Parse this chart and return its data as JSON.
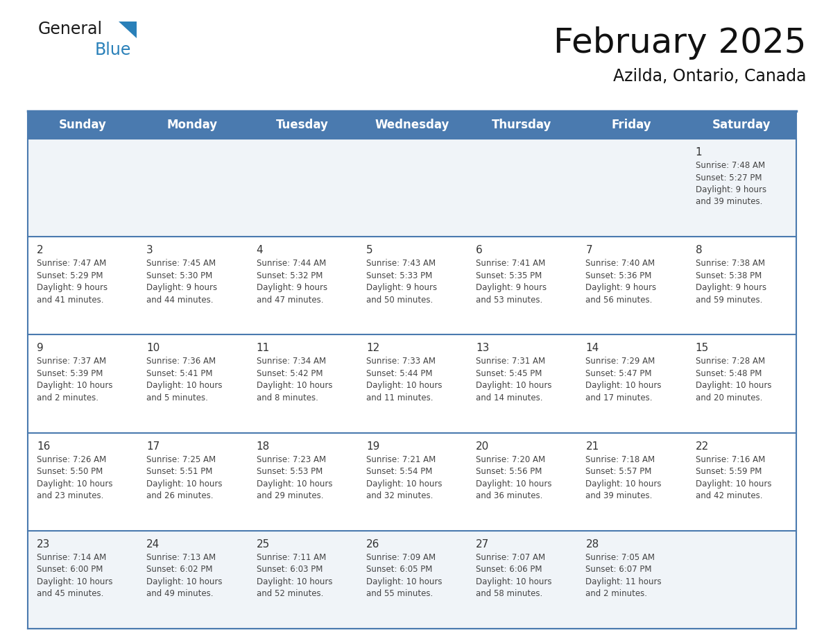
{
  "title": "February 2025",
  "subtitle": "Azilda, Ontario, Canada",
  "header_bg": "#4a7aaf",
  "header_text_color": "#FFFFFF",
  "row_bg_colors": [
    "#f0f4f8",
    "#FFFFFF",
    "#FFFFFF",
    "#FFFFFF",
    "#f0f4f8"
  ],
  "day_number_color": "#333333",
  "cell_text_color": "#444444",
  "border_color": "#4a7aaf",
  "separator_color": "#4a7aaf",
  "days_of_week": [
    "Sunday",
    "Monday",
    "Tuesday",
    "Wednesday",
    "Thursday",
    "Friday",
    "Saturday"
  ],
  "weeks": [
    [
      {
        "day": null,
        "info": null
      },
      {
        "day": null,
        "info": null
      },
      {
        "day": null,
        "info": null
      },
      {
        "day": null,
        "info": null
      },
      {
        "day": null,
        "info": null
      },
      {
        "day": null,
        "info": null
      },
      {
        "day": 1,
        "info": "Sunrise: 7:48 AM\nSunset: 5:27 PM\nDaylight: 9 hours\nand 39 minutes."
      }
    ],
    [
      {
        "day": 2,
        "info": "Sunrise: 7:47 AM\nSunset: 5:29 PM\nDaylight: 9 hours\nand 41 minutes."
      },
      {
        "day": 3,
        "info": "Sunrise: 7:45 AM\nSunset: 5:30 PM\nDaylight: 9 hours\nand 44 minutes."
      },
      {
        "day": 4,
        "info": "Sunrise: 7:44 AM\nSunset: 5:32 PM\nDaylight: 9 hours\nand 47 minutes."
      },
      {
        "day": 5,
        "info": "Sunrise: 7:43 AM\nSunset: 5:33 PM\nDaylight: 9 hours\nand 50 minutes."
      },
      {
        "day": 6,
        "info": "Sunrise: 7:41 AM\nSunset: 5:35 PM\nDaylight: 9 hours\nand 53 minutes."
      },
      {
        "day": 7,
        "info": "Sunrise: 7:40 AM\nSunset: 5:36 PM\nDaylight: 9 hours\nand 56 minutes."
      },
      {
        "day": 8,
        "info": "Sunrise: 7:38 AM\nSunset: 5:38 PM\nDaylight: 9 hours\nand 59 minutes."
      }
    ],
    [
      {
        "day": 9,
        "info": "Sunrise: 7:37 AM\nSunset: 5:39 PM\nDaylight: 10 hours\nand 2 minutes."
      },
      {
        "day": 10,
        "info": "Sunrise: 7:36 AM\nSunset: 5:41 PM\nDaylight: 10 hours\nand 5 minutes."
      },
      {
        "day": 11,
        "info": "Sunrise: 7:34 AM\nSunset: 5:42 PM\nDaylight: 10 hours\nand 8 minutes."
      },
      {
        "day": 12,
        "info": "Sunrise: 7:33 AM\nSunset: 5:44 PM\nDaylight: 10 hours\nand 11 minutes."
      },
      {
        "day": 13,
        "info": "Sunrise: 7:31 AM\nSunset: 5:45 PM\nDaylight: 10 hours\nand 14 minutes."
      },
      {
        "day": 14,
        "info": "Sunrise: 7:29 AM\nSunset: 5:47 PM\nDaylight: 10 hours\nand 17 minutes."
      },
      {
        "day": 15,
        "info": "Sunrise: 7:28 AM\nSunset: 5:48 PM\nDaylight: 10 hours\nand 20 minutes."
      }
    ],
    [
      {
        "day": 16,
        "info": "Sunrise: 7:26 AM\nSunset: 5:50 PM\nDaylight: 10 hours\nand 23 minutes."
      },
      {
        "day": 17,
        "info": "Sunrise: 7:25 AM\nSunset: 5:51 PM\nDaylight: 10 hours\nand 26 minutes."
      },
      {
        "day": 18,
        "info": "Sunrise: 7:23 AM\nSunset: 5:53 PM\nDaylight: 10 hours\nand 29 minutes."
      },
      {
        "day": 19,
        "info": "Sunrise: 7:21 AM\nSunset: 5:54 PM\nDaylight: 10 hours\nand 32 minutes."
      },
      {
        "day": 20,
        "info": "Sunrise: 7:20 AM\nSunset: 5:56 PM\nDaylight: 10 hours\nand 36 minutes."
      },
      {
        "day": 21,
        "info": "Sunrise: 7:18 AM\nSunset: 5:57 PM\nDaylight: 10 hours\nand 39 minutes."
      },
      {
        "day": 22,
        "info": "Sunrise: 7:16 AM\nSunset: 5:59 PM\nDaylight: 10 hours\nand 42 minutes."
      }
    ],
    [
      {
        "day": 23,
        "info": "Sunrise: 7:14 AM\nSunset: 6:00 PM\nDaylight: 10 hours\nand 45 minutes."
      },
      {
        "day": 24,
        "info": "Sunrise: 7:13 AM\nSunset: 6:02 PM\nDaylight: 10 hours\nand 49 minutes."
      },
      {
        "day": 25,
        "info": "Sunrise: 7:11 AM\nSunset: 6:03 PM\nDaylight: 10 hours\nand 52 minutes."
      },
      {
        "day": 26,
        "info": "Sunrise: 7:09 AM\nSunset: 6:05 PM\nDaylight: 10 hours\nand 55 minutes."
      },
      {
        "day": 27,
        "info": "Sunrise: 7:07 AM\nSunset: 6:06 PM\nDaylight: 10 hours\nand 58 minutes."
      },
      {
        "day": 28,
        "info": "Sunrise: 7:05 AM\nSunset: 6:07 PM\nDaylight: 11 hours\nand 2 minutes."
      },
      {
        "day": null,
        "info": null
      }
    ]
  ],
  "logo_general_color": "#1a1a1a",
  "logo_blue_color": "#2980b9",
  "logo_triangle_color": "#2980b9",
  "title_fontsize": 36,
  "subtitle_fontsize": 17,
  "header_fontsize": 12,
  "day_number_fontsize": 11,
  "info_fontsize": 8.5
}
